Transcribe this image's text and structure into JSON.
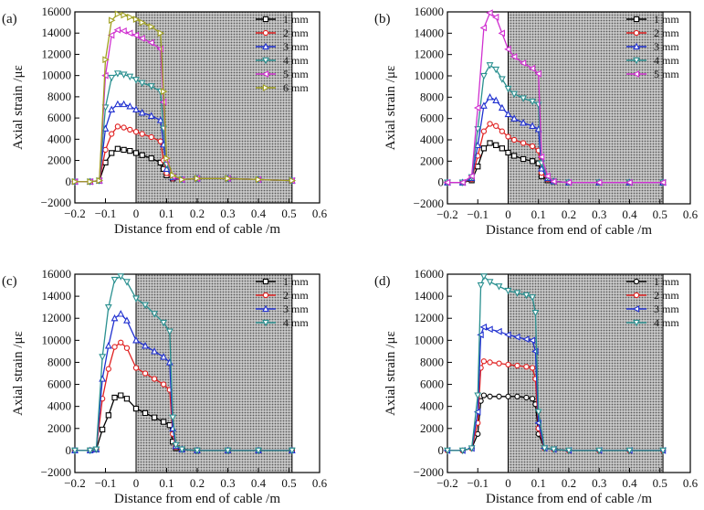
{
  "figure": {
    "panel_labels": [
      "(a)",
      "(b)",
      "(c)",
      "(d)"
    ]
  },
  "chart_data": [
    {
      "panel": "(a)",
      "type": "line",
      "xlabel": "Distance from end of cable /m",
      "ylabel": "Axial strain /με",
      "xlim": [
        -0.2,
        0.6
      ],
      "ylim": [
        -2000,
        16000
      ],
      "xticks": [
        "−0.2",
        "−0.1",
        "0",
        "0.1",
        "0.2",
        "0.3",
        "0.4",
        "0.5",
        "0.6"
      ],
      "yticks": [
        "−2000",
        "0",
        "2000",
        "4000",
        "6000",
        "8000",
        "10000",
        "12000",
        "14000",
        "16000"
      ],
      "shaded_region": [
        0,
        0.51
      ],
      "legend_position": "top-right",
      "series": [
        {
          "name": "1 mm",
          "color": "#000000",
          "marker": "square",
          "x": [
            -0.2,
            -0.15,
            -0.12,
            -0.1,
            -0.08,
            -0.06,
            -0.04,
            -0.02,
            0,
            0.02,
            0.05,
            0.08,
            0.09,
            0.1,
            0.12,
            0.15,
            0.2,
            0.3,
            0.4,
            0.51
          ],
          "y": [
            0,
            0,
            100,
            1800,
            2700,
            3100,
            3000,
            2900,
            2700,
            2500,
            2200,
            1800,
            1200,
            600,
            300,
            200,
            300,
            300,
            200,
            100
          ]
        },
        {
          "name": "2 mm",
          "color": "#e02020",
          "marker": "circle",
          "x": [
            -0.2,
            -0.15,
            -0.12,
            -0.1,
            -0.08,
            -0.06,
            -0.04,
            -0.02,
            0,
            0.02,
            0.05,
            0.08,
            0.09,
            0.1,
            0.12,
            0.15,
            0.2,
            0.3,
            0.4,
            0.51
          ],
          "y": [
            0,
            0,
            100,
            3000,
            4500,
            5200,
            5100,
            4900,
            4700,
            4500,
            4200,
            3800,
            2000,
            800,
            300,
            200,
            300,
            300,
            200,
            100
          ]
        },
        {
          "name": "3 mm",
          "color": "#2030d0",
          "marker": "triangle-up",
          "x": [
            -0.2,
            -0.15,
            -0.12,
            -0.1,
            -0.08,
            -0.06,
            -0.04,
            -0.02,
            0,
            0.02,
            0.05,
            0.08,
            0.09,
            0.1,
            0.12,
            0.15,
            0.2,
            0.3,
            0.4,
            0.51
          ],
          "y": [
            0,
            0,
            100,
            5000,
            6800,
            7300,
            7300,
            7100,
            6800,
            6500,
            6200,
            5800,
            3500,
            1200,
            400,
            200,
            300,
            300,
            200,
            100
          ]
        },
        {
          "name": "4 mm",
          "color": "#2a9090",
          "marker": "triangle-down",
          "x": [
            -0.2,
            -0.15,
            -0.12,
            -0.1,
            -0.08,
            -0.06,
            -0.04,
            -0.02,
            0,
            0.02,
            0.05,
            0.08,
            0.09,
            0.1,
            0.12,
            0.15,
            0.2,
            0.3,
            0.4,
            0.51
          ],
          "y": [
            0,
            0,
            100,
            7000,
            9800,
            10200,
            10100,
            9900,
            9600,
            9300,
            9000,
            8500,
            5000,
            1600,
            500,
            200,
            300,
            300,
            200,
            100
          ]
        },
        {
          "name": "5 mm",
          "color": "#d030d0",
          "marker": "triangle-left",
          "x": [
            -0.2,
            -0.15,
            -0.12,
            -0.1,
            -0.08,
            -0.06,
            -0.04,
            -0.02,
            0,
            0.02,
            0.05,
            0.08,
            0.09,
            0.1,
            0.12,
            0.15,
            0.2,
            0.3,
            0.4,
            0.51
          ],
          "y": [
            0,
            0,
            100,
            10000,
            13800,
            14300,
            14200,
            14000,
            13800,
            13500,
            13100,
            12500,
            7500,
            2000,
            500,
            200,
            300,
            300,
            200,
            100
          ]
        },
        {
          "name": "6 mm",
          "color": "#a0a020",
          "marker": "triangle-right",
          "x": [
            -0.2,
            -0.15,
            -0.12,
            -0.1,
            -0.08,
            -0.06,
            -0.04,
            -0.02,
            0,
            0.02,
            0.05,
            0.08,
            0.09,
            0.1,
            0.12,
            0.15,
            0.2,
            0.3,
            0.4,
            0.51
          ],
          "y": [
            0,
            0,
            100,
            11500,
            15200,
            15800,
            15700,
            15500,
            15300,
            15000,
            14600,
            14000,
            8500,
            2200,
            600,
            200,
            300,
            300,
            200,
            100
          ]
        }
      ]
    },
    {
      "panel": "(b)",
      "type": "line",
      "xlabel": "Distance from end of cable /m",
      "ylabel": "Axial strain /με",
      "xlim": [
        -0.2,
        0.6
      ],
      "ylim": [
        -2000,
        16000
      ],
      "xticks": [
        "−0.2",
        "−0.1",
        "0",
        "0.1",
        "0.2",
        "0.3",
        "0.4",
        "0.5",
        "0.6"
      ],
      "yticks": [
        "−2000",
        "0",
        "2000",
        "4000",
        "6000",
        "8000",
        "10000",
        "12000",
        "14000",
        "16000"
      ],
      "shaded_region": [
        0,
        0.51
      ],
      "legend_position": "top-right",
      "series": [
        {
          "name": "1 mm",
          "color": "#000000",
          "marker": "square",
          "x": [
            -0.2,
            -0.15,
            -0.12,
            -0.1,
            -0.08,
            -0.06,
            -0.04,
            -0.02,
            0,
            0.02,
            0.05,
            0.08,
            0.1,
            0.11,
            0.13,
            0.15,
            0.2,
            0.3,
            0.4,
            0.51
          ],
          "y": [
            0,
            0,
            200,
            1500,
            3200,
            3700,
            3500,
            3200,
            2800,
            2500,
            2200,
            2000,
            1800,
            600,
            200,
            100,
            0,
            0,
            0,
            0
          ]
        },
        {
          "name": "2 mm",
          "color": "#e02020",
          "marker": "circle",
          "x": [
            -0.2,
            -0.15,
            -0.12,
            -0.1,
            -0.08,
            -0.06,
            -0.04,
            -0.02,
            0,
            0.02,
            0.05,
            0.08,
            0.1,
            0.11,
            0.13,
            0.15,
            0.2,
            0.3,
            0.4,
            0.51
          ],
          "y": [
            0,
            0,
            300,
            2500,
            4800,
            5500,
            5300,
            4800,
            4300,
            4000,
            3700,
            3400,
            3000,
            900,
            300,
            100,
            0,
            0,
            0,
            0
          ]
        },
        {
          "name": "3 mm",
          "color": "#2030d0",
          "marker": "triangle-up",
          "x": [
            -0.2,
            -0.15,
            -0.12,
            -0.1,
            -0.08,
            -0.06,
            -0.04,
            -0.02,
            0,
            0.02,
            0.05,
            0.08,
            0.1,
            0.11,
            0.13,
            0.15,
            0.2,
            0.3,
            0.4,
            0.51
          ],
          "y": [
            0,
            0,
            400,
            3500,
            7200,
            8000,
            7700,
            7000,
            6400,
            6000,
            5600,
            5300,
            5000,
            1300,
            400,
            100,
            0,
            0,
            0,
            0
          ]
        },
        {
          "name": "4 mm",
          "color": "#2a9090",
          "marker": "triangle-down",
          "x": [
            -0.2,
            -0.15,
            -0.12,
            -0.1,
            -0.08,
            -0.06,
            -0.04,
            -0.02,
            0,
            0.02,
            0.05,
            0.08,
            0.1,
            0.11,
            0.13,
            0.15,
            0.2,
            0.3,
            0.4,
            0.51
          ],
          "y": [
            0,
            0,
            500,
            5000,
            10000,
            11000,
            10600,
            9700,
            8800,
            8300,
            7900,
            7600,
            7300,
            1800,
            500,
            100,
            0,
            0,
            0,
            0
          ]
        },
        {
          "name": "5 mm",
          "color": "#d030d0",
          "marker": "triangle-left",
          "x": [
            -0.2,
            -0.15,
            -0.12,
            -0.1,
            -0.08,
            -0.06,
            -0.04,
            -0.02,
            0,
            0.02,
            0.05,
            0.08,
            0.1,
            0.11,
            0.13,
            0.15,
            0.2,
            0.3,
            0.4,
            0.51
          ],
          "y": [
            0,
            0,
            600,
            7000,
            14500,
            15900,
            15500,
            14000,
            12500,
            11800,
            11200,
            10700,
            10200,
            2400,
            600,
            100,
            0,
            0,
            0,
            0
          ]
        }
      ]
    },
    {
      "panel": "(c)",
      "type": "line",
      "xlabel": "Distance from end of cable /m",
      "ylabel": "Axial strain /με",
      "xlim": [
        -0.2,
        0.6
      ],
      "ylim": [
        -2000,
        16000
      ],
      "xticks": [
        "−0.2",
        "−0.1",
        "0",
        "0.1",
        "0.2",
        "0.3",
        "0.4",
        "0.5",
        "0.6"
      ],
      "yticks": [
        "−2000",
        "0",
        "2000",
        "4000",
        "6000",
        "8000",
        "10000",
        "12000",
        "14000",
        "16000"
      ],
      "shaded_region": [
        0,
        0.51
      ],
      "legend_position": "top-right",
      "series": [
        {
          "name": "1 mm",
          "color": "#000000",
          "marker": "square",
          "x": [
            -0.2,
            -0.15,
            -0.13,
            -0.11,
            -0.09,
            -0.07,
            -0.05,
            -0.03,
            0,
            0.03,
            0.06,
            0.09,
            0.11,
            0.12,
            0.13,
            0.15,
            0.2,
            0.3,
            0.4,
            0.51
          ],
          "y": [
            0,
            0,
            100,
            1900,
            3200,
            4800,
            5000,
            4700,
            3800,
            3400,
            3000,
            2600,
            2300,
            800,
            200,
            100,
            0,
            0,
            0,
            0
          ]
        },
        {
          "name": "2 mm",
          "color": "#e02020",
          "marker": "circle",
          "x": [
            -0.2,
            -0.15,
            -0.13,
            -0.11,
            -0.09,
            -0.07,
            -0.05,
            -0.03,
            0,
            0.03,
            0.06,
            0.09,
            0.11,
            0.12,
            0.13,
            0.15,
            0.2,
            0.3,
            0.4,
            0.51
          ],
          "y": [
            0,
            0,
            100,
            4700,
            7400,
            9400,
            9800,
            9300,
            7500,
            7000,
            6500,
            6000,
            5500,
            1500,
            300,
            100,
            0,
            0,
            0,
            0
          ]
        },
        {
          "name": "3 mm",
          "color": "#2030d0",
          "marker": "triangle-up",
          "x": [
            -0.2,
            -0.15,
            -0.13,
            -0.11,
            -0.09,
            -0.07,
            -0.05,
            -0.03,
            0,
            0.03,
            0.06,
            0.09,
            0.11,
            0.12,
            0.13,
            0.15,
            0.2,
            0.3,
            0.4,
            0.51
          ],
          "y": [
            0,
            0,
            100,
            6500,
            9500,
            12000,
            12400,
            11800,
            10000,
            9500,
            9000,
            8500,
            8000,
            2000,
            400,
            100,
            0,
            0,
            0,
            0
          ]
        },
        {
          "name": "4 mm",
          "color": "#2a9090",
          "marker": "triangle-down",
          "x": [
            -0.2,
            -0.15,
            -0.13,
            -0.11,
            -0.09,
            -0.07,
            -0.05,
            -0.03,
            0,
            0.03,
            0.06,
            0.09,
            0.11,
            0.12,
            0.13,
            0.15,
            0.2,
            0.3,
            0.4,
            0.51
          ],
          "y": [
            0,
            0,
            100,
            8500,
            13000,
            15500,
            15800,
            15300,
            13800,
            13200,
            12400,
            11600,
            10800,
            3000,
            500,
            100,
            0,
            0,
            0,
            0
          ]
        }
      ]
    },
    {
      "panel": "(d)",
      "type": "line",
      "xlabel": "Distance from end of cable /m",
      "ylabel": "Axial strain /με",
      "xlim": [
        -0.2,
        0.6
      ],
      "ylim": [
        -2000,
        16000
      ],
      "xticks": [
        "−0.2",
        "−0.1",
        "0",
        "0.1",
        "0.2",
        "0.3",
        "0.4",
        "0.5",
        "0.6"
      ],
      "yticks": [
        "−2000",
        "0",
        "2000",
        "4000",
        "6000",
        "8000",
        "10000",
        "12000",
        "14000",
        "16000"
      ],
      "shaded_region": [
        0,
        0.51
      ],
      "legend_position": "top-right",
      "series": [
        {
          "name": "1 mm",
          "color": "#000000",
          "marker": "circle",
          "x": [
            -0.2,
            -0.15,
            -0.12,
            -0.1,
            -0.09,
            -0.08,
            -0.06,
            -0.03,
            0,
            0.03,
            0.06,
            0.08,
            0.09,
            0.1,
            0.12,
            0.15,
            0.2,
            0.3,
            0.4,
            0.51
          ],
          "y": [
            0,
            0,
            200,
            1500,
            4500,
            5000,
            4900,
            4900,
            4900,
            4900,
            4800,
            4700,
            4200,
            1500,
            200,
            100,
            0,
            0,
            0,
            0
          ]
        },
        {
          "name": "2 mm",
          "color": "#e02020",
          "marker": "circle",
          "x": [
            -0.2,
            -0.15,
            -0.12,
            -0.1,
            -0.09,
            -0.08,
            -0.06,
            -0.03,
            0,
            0.03,
            0.06,
            0.08,
            0.09,
            0.1,
            0.12,
            0.15,
            0.2,
            0.3,
            0.4,
            0.51
          ],
          "y": [
            0,
            0,
            200,
            2500,
            7500,
            8100,
            8000,
            7900,
            7800,
            7700,
            7600,
            7500,
            6500,
            2000,
            200,
            100,
            0,
            0,
            0,
            0
          ]
        },
        {
          "name": "3 mm",
          "color": "#2030d0",
          "marker": "triangle-left",
          "x": [
            -0.2,
            -0.15,
            -0.12,
            -0.1,
            -0.09,
            -0.08,
            -0.06,
            -0.03,
            0,
            0.03,
            0.06,
            0.08,
            0.09,
            0.1,
            0.12,
            0.15,
            0.2,
            0.3,
            0.4,
            0.51
          ],
          "y": [
            0,
            0,
            200,
            3500,
            10500,
            11200,
            11000,
            10800,
            10500,
            10300,
            10100,
            10000,
            9000,
            2500,
            200,
            100,
            0,
            0,
            0,
            0
          ]
        },
        {
          "name": "4 mm",
          "color": "#2a9090",
          "marker": "triangle-down",
          "x": [
            -0.2,
            -0.15,
            -0.12,
            -0.1,
            -0.09,
            -0.08,
            -0.06,
            -0.03,
            0,
            0.03,
            0.06,
            0.08,
            0.09,
            0.1,
            0.12,
            0.15,
            0.2,
            0.3,
            0.4,
            0.51
          ],
          "y": [
            0,
            0,
            200,
            5000,
            15000,
            15800,
            15300,
            14900,
            14500,
            14300,
            14100,
            13900,
            12500,
            3500,
            200,
            100,
            0,
            0,
            0,
            0
          ]
        }
      ]
    }
  ]
}
